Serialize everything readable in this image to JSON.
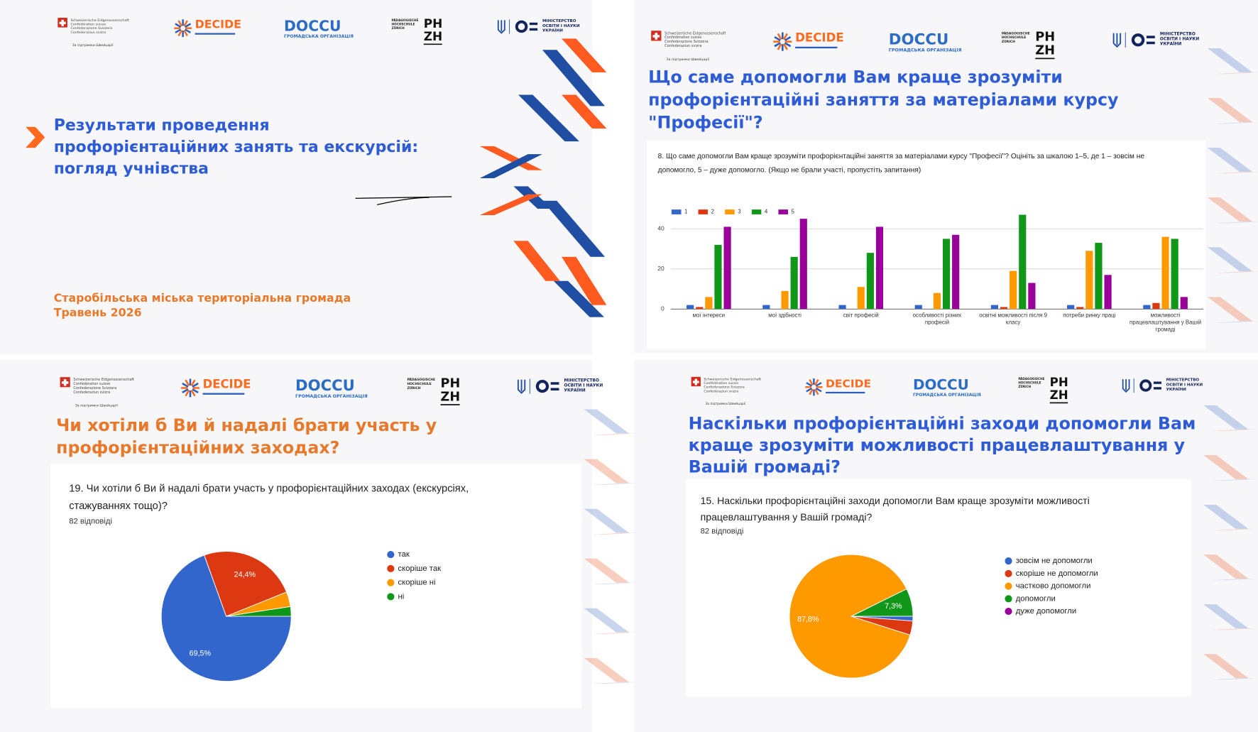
{
  "logos": {
    "swiss": [
      "Schweizerische Eidgenossenschaft",
      "Confédération suisse",
      "Confederazione Svizzera",
      "Confederaziun svizra"
    ],
    "swiss_note": "За підтримки Швейцарії",
    "decide": "DECIDE",
    "doccu": "DOCCU",
    "doccu_sub": "ГРОМАДСЬКА ОРГАНІЗАЦІЯ",
    "phzh_sub": [
      "PÄDAGOGISCHE",
      "HOCHSCHULE",
      "ZÜRICH"
    ],
    "phzh": [
      "PH",
      "ZH"
    ],
    "ministry": [
      "МІНІСТЕРСТВО",
      "ОСВІТИ І НАУКИ",
      "УКРАЇНИ"
    ]
  },
  "slides": [
    {
      "title_lines": [
        "Результати проведення",
        "профорієнтаційних занять та екскурсій:",
        "погляд учнівства"
      ],
      "footer_lines": [
        "Старобільська міська територіальна громада",
        "Травень 2026"
      ]
    },
    {
      "title_lines": [
        "Що саме допомогли Вам краще зрозуміти",
        "профорієнтаційні заняття за матеріалами курсу",
        "\"Професії\"?"
      ]
    },
    {
      "title_lines": [
        "Чи хотіли б Ви й надалі брати участь у",
        "профорієнтаційних заходах?"
      ]
    },
    {
      "title_lines": [
        "Наскільки профорієнтаційні заходи допомогли Вам",
        "краще зрозуміти можливості працевлаштування у",
        "Вашій громаді?"
      ]
    }
  ],
  "chart_data": [
    {
      "type": "bar",
      "title": [
        "8. Що саме допомогли Вам краще зрозуміти профорієнтаційні заняття за матеріалами курсу \"Професії\"? Оцініть за шкалою 1–5, де 1 –  зовсім не",
        "допомогло, 5 –  дуже допомогло. (Якщо не брали участі, пропустіть запитання)"
      ],
      "categories": [
        "мої інтереси",
        "мої здібності",
        "світ професій",
        "особливості різних професій",
        "освітні можливості після 9 класу",
        "потреби ринку праці",
        "можливості працевлаштування у Вашій громаді"
      ],
      "series": [
        {
          "name": "1",
          "color": "#3366cc",
          "values": [
            2,
            2,
            2,
            2,
            2,
            2,
            2
          ]
        },
        {
          "name": "2",
          "color": "#dc3912",
          "values": [
            1,
            0,
            0,
            0,
            1,
            1,
            3
          ]
        },
        {
          "name": "3",
          "color": "#ff9900",
          "values": [
            6,
            9,
            11,
            8,
            19,
            29,
            36
          ]
        },
        {
          "name": "4",
          "color": "#109618",
          "values": [
            32,
            26,
            28,
            35,
            47,
            33,
            35
          ]
        },
        {
          "name": "5",
          "color": "#990099",
          "values": [
            41,
            45,
            41,
            37,
            13,
            17,
            6
          ]
        }
      ],
      "ylim": [
        0,
        50
      ],
      "yticks": [
        0,
        20,
        40
      ],
      "grid": true,
      "legend": "top"
    },
    {
      "type": "pie",
      "title": [
        "19. Чи хотіли б Ви й надалі брати участь у профорієнтаційних заходах (екскурсіях,",
        "стажуваннях тощо)?"
      ],
      "subtitle": "82 відповіді",
      "categories": [
        "так",
        "скоріше так",
        "скоріше ні",
        "ні"
      ],
      "values": [
        69.5,
        24.4,
        3.7,
        2.4
      ],
      "value_labels": [
        "69,5%",
        "24,4%",
        null,
        null
      ],
      "colors": [
        "#3366cc",
        "#dc3912",
        "#ff9900",
        "#109618"
      ],
      "start_angle": 90,
      "legend": "right"
    },
    {
      "type": "pie",
      "title": [
        "15. Наскільки профорієнтаційні заходи допомогли Вам краще зрозуміти можливості",
        "працевлаштування у Вашій громаді?"
      ],
      "subtitle": "82 відповіді",
      "categories": [
        "зовсім не допомогли",
        "скоріше не допомогли",
        "частково допомогли",
        "допомогли",
        "дуже допомогли"
      ],
      "values": [
        1.2,
        3.7,
        87.8,
        7.3,
        0
      ],
      "value_labels": [
        null,
        null,
        "87,8%",
        "7,3%",
        null
      ],
      "colors": [
        "#3366cc",
        "#dc3912",
        "#ff9900",
        "#109618",
        "#990099"
      ],
      "start_angle": 90,
      "legend": "right"
    }
  ]
}
